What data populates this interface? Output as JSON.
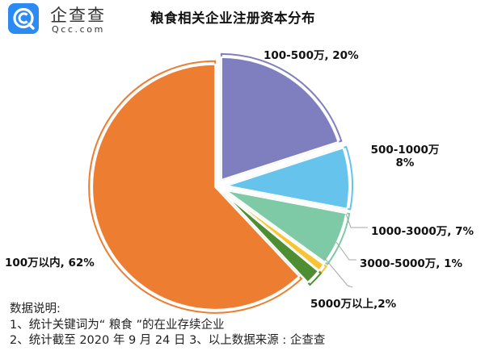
{
  "logo": {
    "icon": "qcc-logo-icon",
    "name_cn": "企查查",
    "name_en": "Qcc.com",
    "brand_color": "#2A8BF2"
  },
  "chart_data": {
    "type": "pie",
    "title": "粮食相关企业注册资本分布",
    "start_angle_deg": 0,
    "direction": "clockwise",
    "exploded": true,
    "categories": [
      "100-500万",
      "500-1000万",
      "1000-3000万",
      "3000-5000万",
      "5000万以上",
      "100万以内"
    ],
    "values": [
      20,
      8,
      7,
      1,
      2,
      62
    ],
    "unit": "%",
    "colors": [
      "#7F7FC0",
      "#65C3EC",
      "#7FCAA6",
      "#F8C433",
      "#4E8E33",
      "#ED7D31"
    ],
    "data_labels": [
      "100-500万, 20%",
      "500-1000万 8%",
      "1000-3000万, 7%",
      "3000-5000万, 1%",
      "5000万以上,2%",
      "100万以内, 62%"
    ],
    "legend": null
  },
  "labels": {
    "l100_500": "100-500万, 20%",
    "l500_1000_a": "500-1000万",
    "l500_1000_b": "8%",
    "l1000_3000": "1000-3000万, 7%",
    "l3000_5000": "3000-5000万, 1%",
    "l5000": "5000万以上,2%",
    "l100": "100万以内, 62%"
  },
  "notes": {
    "heading": "数据说明:",
    "line1": "1、统计关键词为“ 粮食 ”的在业存续企业",
    "line2": "2、统计截至 2020 年 9 月 24 日  3、以上数据来源 : 企查查"
  }
}
